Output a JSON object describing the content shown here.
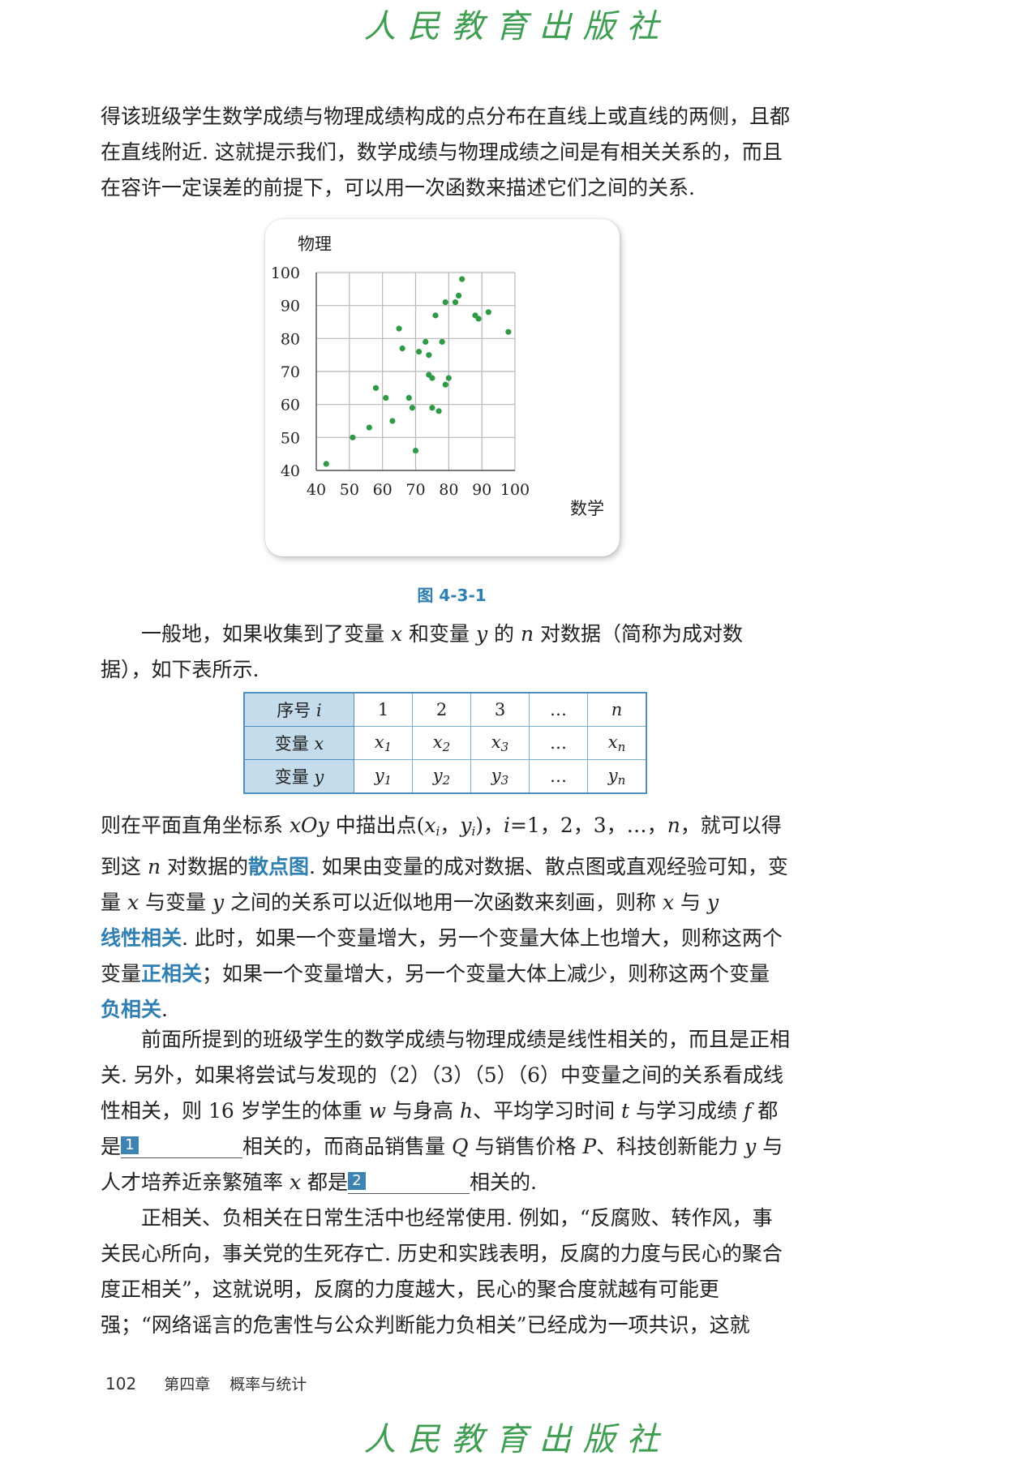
{
  "header": {
    "watermark": "人民教育出版社"
  },
  "paragraphs": {
    "p1": "得该班级学生数学成绩与物理成绩构成的点分布在直线上或直线的两侧，且都在直线附近. 这就提示我们，数学成绩与物理成绩之间是有相关关系的，而且在容许一定误差的前提下，可以用一次函数来描述它们之间的关系.",
    "p2_a": "一般地，如果收集到了变量 ",
    "p2_x": "x",
    "p2_b": " 和变量 ",
    "p2_y": "y",
    "p2_c": " 的 ",
    "p2_n": "n",
    "p2_d": " 对数据（简称为成对数据），如下表所示.",
    "p3_a": "则在平面直角坐标系 ",
    "p3_xoy": "xOy",
    "p3_b": " 中描出点(",
    "p3_xi": "x",
    "p3_xi_sub": "i",
    "p3_comma": "，",
    "p3_yi": "y",
    "p3_yi_sub": "i",
    "p3_c": ")，",
    "p3_i": "i",
    "p3_d": "=1，2，3，…，",
    "p3_n": "n",
    "p3_e": "，就可以得到这 ",
    "p3_n2": "n",
    "p3_f": " 对数据的",
    "p3_term1": "散点图",
    "p3_g": ". 如果由变量的成对数据、散点图或直观经验可知，变量 ",
    "p3_x": "x",
    "p3_h": " 与变量 ",
    "p3_y": "y",
    "p3_i2": " 之间的关系可以近似地用一次函数来刻画，则称 ",
    "p3_x2": "x",
    "p3_j": " 与 ",
    "p3_y2": "y",
    "p3_term2": "线性相关",
    "p3_k": ". 此时，如果一个变量增大，另一个变量大体上也增大，则称这两个变量",
    "p3_term3": "正相关",
    "p3_l": "；如果一个变量增大，另一个变量大体上减少，则称这两个变量",
    "p3_term4": "负相关",
    "p3_m": ".",
    "p4_a": "前面所提到的班级学生的数学成绩与物理成绩是线性相关的，而且是正相关. 另外，如果将尝试与发现的（2）（3）（5）（6）中变量之间的关系看成线性相关，则 16 岁学生的体重 ",
    "p4_w": "w",
    "p4_b": " 与身高 ",
    "p4_h": "h",
    "p4_c": "、平均学习时间 ",
    "p4_t": "t",
    "p4_d": " 与学习成绩 ",
    "p4_f": "f",
    "p4_e": " 都是",
    "p4_blank1": "1",
    "p4_f2": "相关的，而商品销售量 ",
    "p4_Q": "Q",
    "p4_g": " 与销售价格 ",
    "p4_P": "P",
    "p4_h2": "、科技创新能力 ",
    "p4_y": "y",
    "p4_i": " 与人才培养近亲繁殖率 ",
    "p4_x": "x",
    "p4_j": " 都是",
    "p4_blank2": "2",
    "p4_k": "相关的.",
    "p5": "正相关、负相关在日常生活中也经常使用. 例如，“反腐败、转作风，事关民心所向，事关党的生死存亡. 历史和实践表明，反腐的力度与民心的聚合度正相关”，这就说明，反腐的力度越大，民心的聚合度就越有可能更强；“网络谣言的危害性与公众判断能力负相关”已经成为一项共识，这就"
  },
  "figure": {
    "caption": "图 4-3-1"
  },
  "chart_data": {
    "type": "scatter",
    "title": "",
    "xlabel": "数学",
    "ylabel": "物理",
    "xlim": [
      40,
      100
    ],
    "ylim": [
      40,
      100
    ],
    "xticks": [
      "40",
      "50",
      "60",
      "70",
      "80",
      "90",
      "100"
    ],
    "yticks": [
      "40",
      "50",
      "60",
      "70",
      "80",
      "90",
      "100"
    ],
    "grid": true,
    "point_color": "#2e9a45",
    "points": [
      [
        43,
        42
      ],
      [
        51,
        50
      ],
      [
        56,
        53
      ],
      [
        58,
        65
      ],
      [
        61,
        62
      ],
      [
        63,
        55
      ],
      [
        65,
        83
      ],
      [
        66,
        77
      ],
      [
        68,
        62
      ],
      [
        69,
        59
      ],
      [
        70,
        46
      ],
      [
        71,
        76
      ],
      [
        73,
        79
      ],
      [
        74,
        75
      ],
      [
        74,
        69
      ],
      [
        75,
        68
      ],
      [
        75,
        59
      ],
      [
        76,
        87
      ],
      [
        77,
        58
      ],
      [
        78,
        79
      ],
      [
        79,
        91
      ],
      [
        79,
        66
      ],
      [
        80,
        68
      ],
      [
        82,
        91
      ],
      [
        83,
        93
      ],
      [
        84,
        98
      ],
      [
        88,
        87
      ],
      [
        89,
        86
      ],
      [
        92,
        88
      ],
      [
        98,
        82
      ]
    ]
  },
  "table": {
    "header": "序号",
    "header_var": "i",
    "cols": [
      "1",
      "2",
      "3",
      "…"
    ],
    "col_n": "n",
    "row_x_label": "变量",
    "row_x_var": "x",
    "row_x_vals": [
      "1",
      "2",
      "3"
    ],
    "row_x_n": "n",
    "row_y_label": "变量",
    "row_y_var": "y",
    "row_y_vals": [
      "1",
      "2",
      "3"
    ],
    "row_y_n": "n",
    "dots": "…"
  },
  "footer": {
    "page_number": "102",
    "chapter": "第四章",
    "chapter_title": "概率与统计"
  }
}
